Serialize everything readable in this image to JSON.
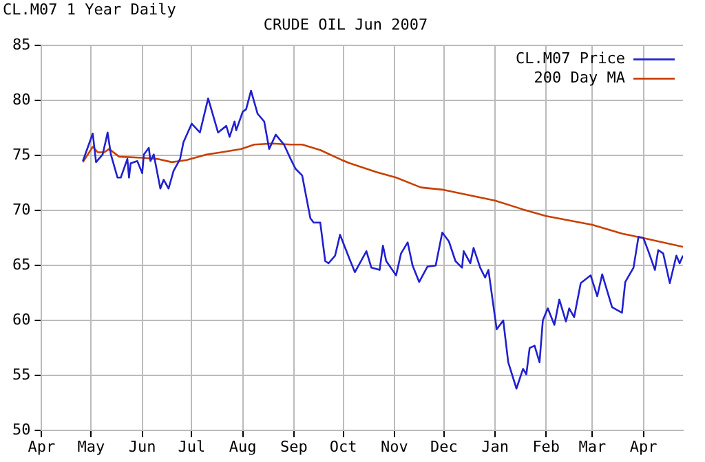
{
  "chart_data": {
    "type": "line",
    "title": "CRUDE OIL Jun 2007",
    "annotations": [
      "CL.M07 1 Year Daily"
    ],
    "xlim": [
      "2006-04-01",
      "2007-04-25"
    ],
    "xticks": [
      {
        "value": "2006-04-01",
        "label": "Apr"
      },
      {
        "value": "2006-05-01",
        "label": "May"
      },
      {
        "value": "2006-06-01",
        "label": "Jun"
      },
      {
        "value": "2006-07-01",
        "label": "Jul"
      },
      {
        "value": "2006-08-01",
        "label": "Aug"
      },
      {
        "value": "2006-09-01",
        "label": "Sep"
      },
      {
        "value": "2006-10-01",
        "label": "Oct"
      },
      {
        "value": "2006-11-01",
        "label": "Nov"
      },
      {
        "value": "2006-12-01",
        "label": "Dec"
      },
      {
        "value": "2007-01-01",
        "label": "Jan"
      },
      {
        "value": "2007-02-01",
        "label": "Feb"
      },
      {
        "value": "2007-03-01",
        "label": "Mar"
      },
      {
        "value": "2007-04-01",
        "label": "Apr"
      }
    ],
    "ylim": [
      50,
      85
    ],
    "yticks": [
      50,
      55,
      60,
      65,
      70,
      75,
      80,
      85
    ],
    "grid": true,
    "legend": "top right",
    "marker": "none",
    "line_style": "solid",
    "series": [
      {
        "name": "CL.M07 Price",
        "color": "#2020d0",
        "x": [
          "2006-04-26",
          "2006-05-02",
          "2006-05-04",
          "2006-05-08",
          "2006-05-10",
          "2006-05-11",
          "2006-05-13",
          "2006-05-17",
          "2006-05-19",
          "2006-05-23",
          "2006-05-24",
          "2006-05-25",
          "2006-05-29",
          "2006-06-01",
          "2006-06-02",
          "2006-06-05",
          "2006-06-06",
          "2006-06-08",
          "2006-06-12",
          "2006-06-14",
          "2006-06-17",
          "2006-06-20",
          "2006-06-24",
          "2006-06-26",
          "2006-07-01",
          "2006-07-06",
          "2006-07-11",
          "2006-07-17",
          "2006-07-22",
          "2006-07-24",
          "2006-07-27",
          "2006-07-28",
          "2006-08-01",
          "2006-08-03",
          "2006-08-06",
          "2006-08-10",
          "2006-08-14",
          "2006-08-17",
          "2006-08-21",
          "2006-08-26",
          "2006-08-30",
          "2006-09-02",
          "2006-09-06",
          "2006-09-11",
          "2006-09-13",
          "2006-09-17",
          "2006-09-20",
          "2006-09-22",
          "2006-09-26",
          "2006-09-29",
          "2006-10-05",
          "2006-10-08",
          "2006-10-15",
          "2006-10-18",
          "2006-10-23",
          "2006-10-25",
          "2006-10-27",
          "2006-11-02",
          "2006-11-05",
          "2006-11-09",
          "2006-11-12",
          "2006-11-16",
          "2006-11-21",
          "2006-11-26",
          "2006-11-30",
          "2006-12-04",
          "2006-12-08",
          "2006-12-12",
          "2006-12-13",
          "2006-12-17",
          "2006-12-19",
          "2006-12-23",
          "2006-12-26",
          "2006-12-28",
          "2007-01-02",
          "2007-01-06",
          "2007-01-09",
          "2007-01-14",
          "2007-01-18",
          "2007-01-20",
          "2007-01-22",
          "2007-01-25",
          "2007-01-28",
          "2007-01-30",
          "2007-02-02",
          "2007-02-06",
          "2007-02-09",
          "2007-02-13",
          "2007-02-15",
          "2007-02-18",
          "2007-02-22",
          "2007-02-28",
          "2007-03-04",
          "2007-03-07",
          "2007-03-13",
          "2007-03-19",
          "2007-03-21",
          "2007-03-26",
          "2007-03-29",
          "2007-04-01",
          "2007-04-04",
          "2007-04-08",
          "2007-04-10",
          "2007-04-13",
          "2007-04-17",
          "2007-04-21",
          "2007-04-23",
          "2007-04-25"
        ],
        "values": [
          74.5,
          77.0,
          74.4,
          75.1,
          76.4,
          77.1,
          75.1,
          73.0,
          73.0,
          74.7,
          73.0,
          74.3,
          74.5,
          73.4,
          75.1,
          75.7,
          74.5,
          75.1,
          72.0,
          72.8,
          72.0,
          73.6,
          74.7,
          76.2,
          77.9,
          77.1,
          80.2,
          77.1,
          77.7,
          76.7,
          78.1,
          77.3,
          79.0,
          79.2,
          80.9,
          78.8,
          78.1,
          75.6,
          76.9,
          76.0,
          74.7,
          73.8,
          73.2,
          69.3,
          68.9,
          68.9,
          65.4,
          65.2,
          65.9,
          67.8,
          65.5,
          64.4,
          66.3,
          64.8,
          64.6,
          66.8,
          65.4,
          64.1,
          66.1,
          67.1,
          65.0,
          63.5,
          64.9,
          65.0,
          68.0,
          67.2,
          65.4,
          64.8,
          66.3,
          65.2,
          66.6,
          64.8,
          63.9,
          64.6,
          59.2,
          60.0,
          56.2,
          53.8,
          55.6,
          55.1,
          57.5,
          57.7,
          56.2,
          60.0,
          61.1,
          59.6,
          61.9,
          59.9,
          61.1,
          60.3,
          63.4,
          64.1,
          62.2,
          64.2,
          61.2,
          60.7,
          63.5,
          64.8,
          67.6,
          67.5,
          66.3,
          64.6,
          66.4,
          66.1,
          63.4,
          65.9,
          65.2,
          65.9
        ]
      },
      {
        "name": "200 Day MA",
        "color": "#c84000",
        "x": [
          "2006-04-26",
          "2006-05-02",
          "2006-05-05",
          "2006-05-09",
          "2006-05-12",
          "2006-05-18",
          "2006-06-01",
          "2006-06-10",
          "2006-06-19",
          "2006-06-28",
          "2006-07-10",
          "2006-07-19",
          "2006-07-31",
          "2006-08-08",
          "2006-08-19",
          "2006-08-30",
          "2006-09-06",
          "2006-09-17",
          "2006-09-30",
          "2006-10-05",
          "2006-10-21",
          "2006-11-02",
          "2006-11-17",
          "2006-11-30",
          "2006-12-13",
          "2007-01-01",
          "2007-01-18",
          "2007-02-01",
          "2007-03-01",
          "2007-03-19",
          "2007-04-01",
          "2007-04-25"
        ],
        "values": [
          74.4,
          75.8,
          75.3,
          75.3,
          75.6,
          74.9,
          74.8,
          74.7,
          74.4,
          74.6,
          75.1,
          75.3,
          75.6,
          76.0,
          76.1,
          76.0,
          76.0,
          75.5,
          74.6,
          74.3,
          73.5,
          73.0,
          72.1,
          71.9,
          71.5,
          70.9,
          70.1,
          69.5,
          68.7,
          67.9,
          67.5,
          66.7
        ]
      }
    ]
  }
}
